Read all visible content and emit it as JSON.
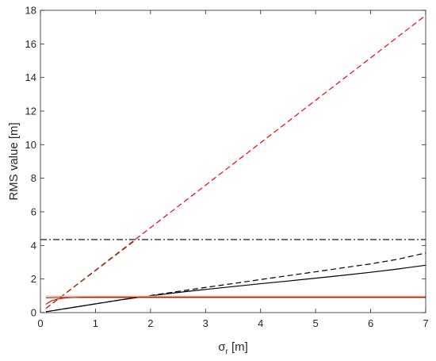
{
  "chart_data": {
    "type": "line",
    "xlabel_symbol": "σ",
    "xlabel_subscript": "r",
    "xlabel_unit": " [m]",
    "ylabel": "RMS value [m]",
    "xlim": [
      0,
      7
    ],
    "ylim": [
      0,
      18
    ],
    "x_ticks": [
      "0",
      "1",
      "2",
      "3",
      "4",
      "5",
      "6",
      "7"
    ],
    "y_ticks": [
      "0",
      "2",
      "4",
      "6",
      "8",
      "10",
      "12",
      "14",
      "16",
      "18"
    ],
    "grid": false,
    "series": [
      {
        "color": "#ff0000",
        "dash": "dashed",
        "x": [
          0.1,
          7.0
        ],
        "y": [
          0.25,
          17.7
        ]
      },
      {
        "color": "#7a3b00",
        "dash": "dashed",
        "x": [
          0.1,
          0.3,
          0.5,
          0.7,
          0.9,
          1.1,
          1.3,
          1.5,
          1.7
        ],
        "y": [
          0.25,
          0.75,
          1.25,
          1.75,
          2.25,
          2.75,
          3.25,
          3.75,
          4.25
        ]
      },
      {
        "color": "#000000",
        "dash": "dashdot",
        "x": [
          0,
          7
        ],
        "y": [
          4.35,
          4.35
        ]
      },
      {
        "color": "#000000",
        "dash": "dashed",
        "x": [
          0.1,
          0.5,
          1.0,
          1.5,
          2.0,
          2.5,
          3.0,
          3.5,
          4.0,
          4.5,
          5.0,
          5.5,
          6.0,
          6.5,
          7.0
        ],
        "y": [
          0.05,
          0.26,
          0.52,
          0.78,
          1.02,
          1.26,
          1.5,
          1.73,
          1.97,
          2.2,
          2.43,
          2.67,
          2.9,
          3.18,
          3.55
        ]
      },
      {
        "color": "#000000",
        "dash": "solid",
        "x": [
          0.1,
          0.5,
          1.0,
          1.5,
          2.0,
          2.5,
          3.0,
          3.5,
          4.0,
          4.5,
          5.0,
          5.5,
          6.0,
          6.5,
          7.0
        ],
        "y": [
          0.05,
          0.26,
          0.52,
          0.78,
          1.0,
          1.2,
          1.38,
          1.55,
          1.72,
          1.88,
          2.05,
          2.22,
          2.4,
          2.6,
          2.82
        ]
      },
      {
        "color": "#ff0000",
        "dash": "solid",
        "x": [
          0.1,
          0.2,
          0.3,
          0.45,
          0.6,
          0.8,
          1.0,
          1.5,
          2.0,
          7.0
        ],
        "y": [
          0.5,
          0.7,
          0.8,
          0.87,
          0.9,
          0.92,
          0.93,
          0.93,
          0.93,
          0.93
        ]
      },
      {
        "color": "#7a3b00",
        "dash": "solid",
        "x": [
          0.1,
          0.3,
          0.6,
          1.0,
          7.0
        ],
        "y": [
          0.88,
          0.9,
          0.9,
          0.9,
          0.9
        ]
      },
      {
        "color": "#ffb0b0",
        "dash": "solid",
        "x": [
          0.1,
          7.0
        ],
        "y": [
          0.98,
          0.98
        ]
      }
    ]
  }
}
